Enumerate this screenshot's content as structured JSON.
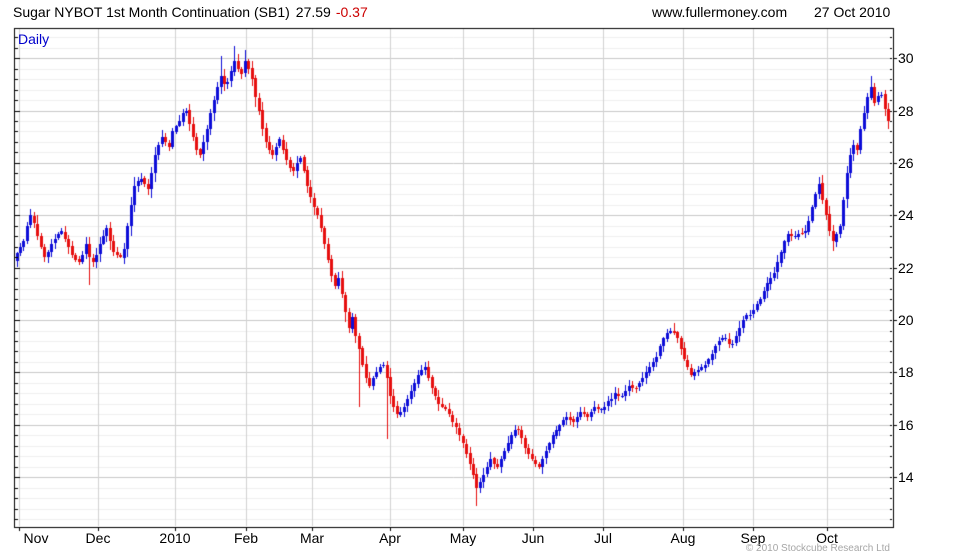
{
  "header": {
    "title": "Sugar NYBOT 1st Month Continuation (SB1)",
    "last_price": "27.59",
    "change": "-0.37",
    "website": "www.fullermoney.com",
    "date": "27 Oct 2010"
  },
  "plot": {
    "timeframe_label": "Daily",
    "copyright": "© 2010 Stockcube Research Ltd"
  },
  "chart_data": {
    "type": "candlestick",
    "title": "Sugar NYBOT 1st Month Continuation (SB1)",
    "timeframe": "Daily",
    "last_close": 27.59,
    "change": -0.37,
    "grid": true,
    "y_axis": {
      "min": 12.1,
      "max": 31.15,
      "major_step": 2,
      "minor_step": 0.4,
      "labels": [
        30,
        28,
        26,
        24,
        22,
        20,
        18,
        16,
        14
      ]
    },
    "x_axis": {
      "total_days": 253,
      "months": [
        {
          "label": "Nov",
          "day": 0.6
        },
        {
          "label": "Dec",
          "day": 23.7
        },
        {
          "label": "2010",
          "day": 45.7
        },
        {
          "label": "Feb",
          "day": 66.5
        },
        {
          "label": "Mar",
          "day": 85.5
        },
        {
          "label": "Apr",
          "day": 108.1
        },
        {
          "label": "May",
          "day": 129.2
        },
        {
          "label": "Jun",
          "day": 149.4
        },
        {
          "label": "Jul",
          "day": 169.7
        },
        {
          "label": "Aug",
          "day": 192.8
        },
        {
          "label": "Sep",
          "day": 213.0
        },
        {
          "label": "Oct",
          "day": 234.4
        }
      ]
    },
    "closes": [
      22.55,
      22.8,
      23.0,
      23.6,
      24.0,
      23.7,
      23.2,
      22.8,
      22.4,
      22.6,
      22.9,
      23.1,
      23.3,
      23.4,
      23.1,
      22.8,
      22.5,
      22.3,
      22.2,
      22.5,
      22.9,
      22.4,
      22.2,
      22.5,
      22.9,
      23.2,
      23.5,
      23.0,
      22.6,
      22.5,
      22.4,
      22.7,
      23.6,
      24.4,
      25.1,
      25.3,
      25.4,
      25.2,
      25.0,
      25.6,
      26.3,
      26.7,
      27.0,
      26.8,
      26.6,
      27.2,
      27.4,
      27.6,
      27.9,
      28.0,
      27.5,
      27.0,
      26.5,
      26.3,
      26.8,
      27.3,
      27.9,
      28.4,
      28.9,
      29.3,
      29.0,
      29.1,
      29.5,
      29.9,
      29.6,
      29.4,
      29.9,
      29.6,
      29.2,
      28.5,
      28.0,
      27.3,
      26.8,
      26.5,
      26.3,
      26.6,
      26.9,
      26.5,
      26.1,
      25.8,
      25.7,
      26.0,
      26.2,
      25.7,
      25.1,
      24.7,
      24.3,
      24.0,
      23.5,
      22.9,
      22.3,
      21.7,
      21.3,
      21.6,
      21.0,
      20.3,
      19.7,
      20.1,
      19.4,
      18.9,
      18.3,
      17.8,
      17.5,
      17.8,
      18.0,
      18.2,
      18.3,
      17.8,
      17.1,
      16.7,
      16.4,
      16.5,
      16.7,
      17.0,
      17.3,
      17.6,
      17.9,
      18.1,
      18.2,
      17.8,
      17.4,
      17.1,
      16.8,
      16.7,
      16.6,
      16.4,
      16.1,
      15.9,
      15.6,
      15.3,
      14.9,
      14.5,
      14.1,
      13.6,
      13.8,
      14.1,
      14.4,
      14.7,
      14.5,
      14.4,
      14.7,
      15.0,
      15.3,
      15.6,
      15.8,
      15.8,
      15.5,
      15.1,
      14.9,
      14.7,
      14.5,
      14.4,
      14.7,
      15.0,
      15.3,
      15.6,
      15.8,
      16.0,
      16.2,
      16.3,
      16.2,
      16.1,
      16.3,
      16.5,
      16.4,
      16.3,
      16.5,
      16.7,
      16.6,
      16.6,
      16.7,
      16.9,
      17.0,
      17.2,
      17.1,
      17.1,
      17.3,
      17.5,
      17.4,
      17.4,
      17.6,
      17.8,
      18.0,
      18.2,
      18.4,
      18.6,
      19.0,
      19.3,
      19.5,
      19.6,
      19.5,
      19.3,
      18.9,
      18.5,
      18.2,
      17.9,
      18.0,
      18.1,
      18.2,
      18.3,
      18.5,
      18.7,
      19.0,
      19.2,
      19.3,
      19.3,
      19.1,
      19.1,
      19.4,
      19.7,
      20.0,
      20.2,
      20.2,
      20.4,
      20.6,
      20.8,
      21.1,
      21.4,
      21.6,
      21.8,
      22.2,
      22.6,
      23.0,
      23.3,
      23.2,
      23.2,
      23.3,
      23.3,
      23.4,
      23.8,
      24.3,
      24.8,
      25.2,
      24.6,
      24.0,
      23.4,
      23.0,
      23.3,
      23.6,
      24.6,
      25.6,
      26.3,
      26.7,
      26.5,
      27.3,
      27.9,
      28.5,
      28.9,
      28.3,
      28.55,
      28.6,
      28.05,
      27.59
    ],
    "wick_overrides": [
      {
        "day": 4,
        "high": 24.25
      },
      {
        "day": 21,
        "low": 21.35
      },
      {
        "day": 59,
        "high": 30.1
      },
      {
        "day": 63,
        "high": 30.45
      },
      {
        "day": 66,
        "high": 30.3
      },
      {
        "day": 99,
        "low": 16.7
      },
      {
        "day": 107,
        "low": 15.45
      },
      {
        "day": 133,
        "low": 12.9
      },
      {
        "day": 190,
        "high": 19.9
      },
      {
        "day": 236,
        "low": 22.65
      },
      {
        "day": 247,
        "high": 29.3
      }
    ],
    "colors": {
      "up": "#0d0dd8",
      "down": "#e60f0f",
      "grid_major": "#c9c9c9",
      "grid_minor": "#efefef",
      "grid_month": "#d2d2d2",
      "frame": "#000000",
      "timeframe_label": "#0000cc",
      "change_negative": "#cc0000"
    },
    "seed": 7
  }
}
